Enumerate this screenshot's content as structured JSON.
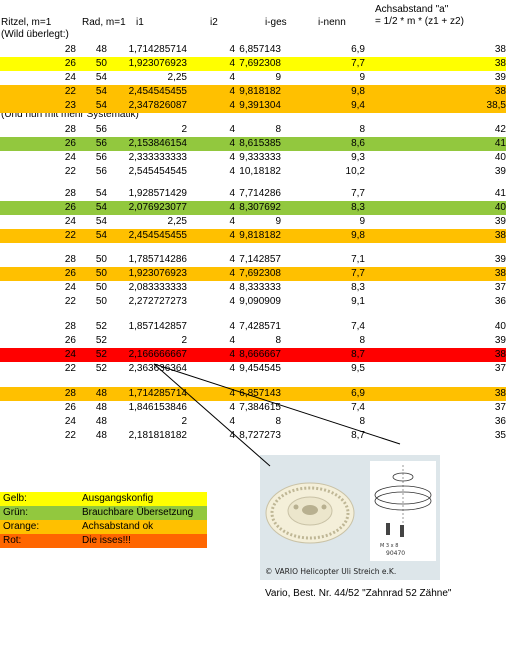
{
  "headers": {
    "ritzel": "Ritzel, m=1",
    "rad": "Rad, m=1",
    "i1": "i1",
    "i2": "i2",
    "iges": "i-ges",
    "inenn": "i-nenn",
    "achs1": "Achsabstand \"a\"",
    "achs2": "= 1/2 * m * (z1 + z2)"
  },
  "notes": {
    "wild": "(Wild überlegt:)",
    "system": "(Und nun mit mehr Systematik)"
  },
  "rows": [
    {
      "z1": "28",
      "z2": "48",
      "i1": "1,714285714",
      "i2": "4",
      "iges": "6,857143",
      "inenn": "6,9",
      "a": "38",
      "color": ""
    },
    {
      "z1": "26",
      "z2": "50",
      "i1": "1,923076923",
      "i2": "4",
      "iges": "7,692308",
      "inenn": "7,7",
      "a": "38",
      "color": "yellow"
    },
    {
      "z1": "24",
      "z2": "54",
      "i1": "2,25",
      "i2": "4",
      "iges": "9",
      "inenn": "9",
      "a": "39",
      "color": ""
    },
    {
      "z1": "22",
      "z2": "54",
      "i1": "2,454545455",
      "i2": "4",
      "iges": "9,818182",
      "inenn": "9,8",
      "a": "38",
      "color": "orange"
    },
    {
      "z1": "23",
      "z2": "54",
      "i1": "2,347826087",
      "i2": "4",
      "iges": "9,391304",
      "inenn": "9,4",
      "a": "38,5",
      "color": "orange"
    },
    {
      "z1": "28",
      "z2": "56",
      "i1": "2",
      "i2": "4",
      "iges": "8",
      "inenn": "8",
      "a": "42",
      "color": ""
    },
    {
      "z1": "26",
      "z2": "56",
      "i1": "2,153846154",
      "i2": "4",
      "iges": "8,615385",
      "inenn": "8,6",
      "a": "41",
      "color": "green"
    },
    {
      "z1": "24",
      "z2": "56",
      "i1": "2,333333333",
      "i2": "4",
      "iges": "9,333333",
      "inenn": "9,3",
      "a": "40",
      "color": ""
    },
    {
      "z1": "22",
      "z2": "56",
      "i1": "2,545454545",
      "i2": "4",
      "iges": "10,18182",
      "inenn": "10,2",
      "a": "39",
      "color": ""
    },
    {
      "z1": "28",
      "z2": "54",
      "i1": "1,928571429",
      "i2": "4",
      "iges": "7,714286",
      "inenn": "7,7",
      "a": "41",
      "color": ""
    },
    {
      "z1": "26",
      "z2": "54",
      "i1": "2,076923077",
      "i2": "4",
      "iges": "8,307692",
      "inenn": "8,3",
      "a": "40",
      "color": "green"
    },
    {
      "z1": "24",
      "z2": "54",
      "i1": "2,25",
      "i2": "4",
      "iges": "9",
      "inenn": "9",
      "a": "39",
      "color": ""
    },
    {
      "z1": "22",
      "z2": "54",
      "i1": "2,454545455",
      "i2": "4",
      "iges": "9,818182",
      "inenn": "9,8",
      "a": "38",
      "color": "orange"
    },
    {
      "z1": "28",
      "z2": "50",
      "i1": "1,785714286",
      "i2": "4",
      "iges": "7,142857",
      "inenn": "7,1",
      "a": "39",
      "color": ""
    },
    {
      "z1": "26",
      "z2": "50",
      "i1": "1,923076923",
      "i2": "4",
      "iges": "7,692308",
      "inenn": "7,7",
      "a": "38",
      "color": "orange"
    },
    {
      "z1": "24",
      "z2": "50",
      "i1": "2,083333333",
      "i2": "4",
      "iges": "8,333333",
      "inenn": "8,3",
      "a": "37",
      "color": ""
    },
    {
      "z1": "22",
      "z2": "50",
      "i1": "2,272727273",
      "i2": "4",
      "iges": "9,090909",
      "inenn": "9,1",
      "a": "36",
      "color": ""
    },
    {
      "z1": "28",
      "z2": "52",
      "i1": "1,857142857",
      "i2": "4",
      "iges": "7,428571",
      "inenn": "7,4",
      "a": "40",
      "color": ""
    },
    {
      "z1": "26",
      "z2": "52",
      "i1": "2",
      "i2": "4",
      "iges": "8",
      "inenn": "8",
      "a": "39",
      "color": ""
    },
    {
      "z1": "24",
      "z2": "52",
      "i1": "2,166666667",
      "i2": "4",
      "iges": "8,666667",
      "inenn": "8,7",
      "a": "38",
      "color": "red"
    },
    {
      "z1": "22",
      "z2": "52",
      "i1": "2,363636364",
      "i2": "4",
      "iges": "9,454545",
      "inenn": "9,5",
      "a": "37",
      "color": ""
    },
    {
      "z1": "28",
      "z2": "48",
      "i1": "1,714285714",
      "i2": "4",
      "iges": "6,857143",
      "inenn": "6,9",
      "a": "38",
      "color": "orange"
    },
    {
      "z1": "26",
      "z2": "48",
      "i1": "1,846153846",
      "i2": "4",
      "iges": "7,384615",
      "inenn": "7,4",
      "a": "37",
      "color": ""
    },
    {
      "z1": "24",
      "z2": "48",
      "i1": "2",
      "i2": "4",
      "iges": "8",
      "inenn": "8",
      "a": "36",
      "color": ""
    },
    {
      "z1": "22",
      "z2": "48",
      "i1": "2,181818182",
      "i2": "4",
      "iges": "8,727273",
      "inenn": "8,7",
      "a": "35",
      "color": ""
    }
  ],
  "legend": [
    {
      "key": "Gelb:",
      "text": "Ausgangskonfig",
      "color": "#ffff00"
    },
    {
      "key": "Grün:",
      "text": "Brauchbare Übersetzung",
      "color": "#92c83e"
    },
    {
      "key": "Orange:",
      "text": "Achsabstand ok",
      "color": "#ffc000"
    },
    {
      "key": "Rot:",
      "text": "Die isses!!!",
      "color": "#ff6600"
    }
  ],
  "photo": {
    "watermark": "© VARIO Helicopter Uli Streich e.K.",
    "part_label": "90470",
    "screw_label": "M 3 x 8"
  },
  "caption": "Vario, Best. Nr. 44/52  \"Zahnrad 52 Zähne\""
}
